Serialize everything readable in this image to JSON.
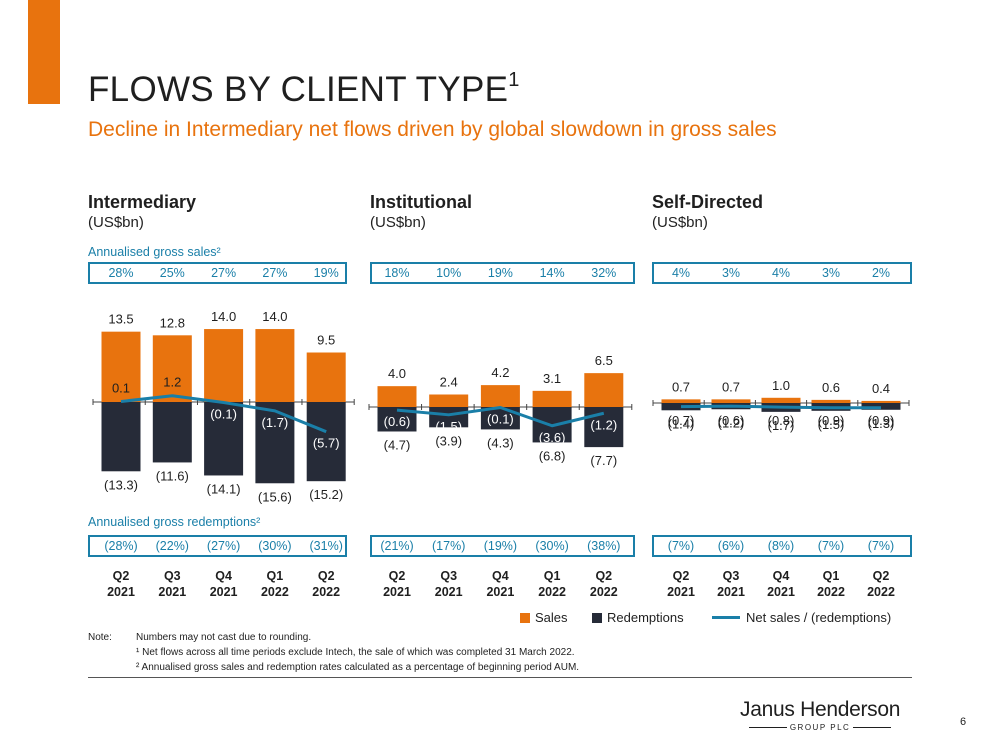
{
  "title": "FLOWS BY CLIENT TYPE",
  "title_sup": "1",
  "subtitle": "Decline in Intermediary net flows driven by global slowdown in gross sales",
  "gross_sales_label": "Annualised gross sales²",
  "gross_redemptions_label": "Annualised gross redemptions²",
  "quarters": [
    {
      "q": "Q2",
      "y": "2021"
    },
    {
      "q": "Q3",
      "y": "2021"
    },
    {
      "q": "Q4",
      "y": "2021"
    },
    {
      "q": "Q1",
      "y": "2022"
    },
    {
      "q": "Q2",
      "y": "2022"
    }
  ],
  "legend": {
    "sales": "Sales",
    "redemptions": "Redemptions",
    "net": "Net sales / (redemptions)"
  },
  "notes": {
    "lead": "Note:",
    "line1": "Numbers may not cast due to rounding.",
    "line2": "¹ Net flows across all time periods exclude Intech, the sale of which was completed 31 March 2022.",
    "line3": "² Annualised gross sales and redemption rates calculated as a percentage of beginning period AUM."
  },
  "logo": {
    "name": "Janus Henderson",
    "sub": "GROUP PLC"
  },
  "page_number": "6",
  "colors": {
    "sales": "#e8730e",
    "redemptions": "#262b38",
    "net": "#1a7fa8",
    "accent": "#e8730e"
  },
  "chart_data": [
    {
      "type": "bar",
      "title": "Intermediary",
      "unit": "(US$bn)",
      "categories": [
        "Q2 2021",
        "Q3 2021",
        "Q4 2021",
        "Q1 2022",
        "Q2 2022"
      ],
      "series": [
        {
          "name": "Sales",
          "values": [
            13.5,
            12.8,
            14.0,
            14.0,
            9.5
          ]
        },
        {
          "name": "Redemptions",
          "values": [
            -13.3,
            -11.6,
            -14.1,
            -15.6,
            -15.2
          ]
        },
        {
          "name": "Net sales / (redemptions)",
          "values": [
            0.1,
            1.2,
            -0.1,
            -1.7,
            -5.7
          ]
        }
      ],
      "labels": {
        "sales": [
          "13.5",
          "12.8",
          "14.0",
          "14.0",
          "9.5"
        ],
        "redemptions": [
          "(13.3)",
          "(11.6)",
          "(14.1)",
          "(15.6)",
          "(15.2)"
        ],
        "net": [
          "0.1",
          "1.2",
          "(0.1)",
          "(1.7)",
          "(5.7)"
        ]
      },
      "gross_sales_rates": [
        "28%",
        "25%",
        "27%",
        "27%",
        "19%"
      ],
      "gross_redemption_rates": [
        "(28%)",
        "(22%)",
        "(27%)",
        "(30%)",
        "(31%)"
      ]
    },
    {
      "type": "bar",
      "title": "Institutional",
      "unit": "(US$bn)",
      "categories": [
        "Q2 2021",
        "Q3 2021",
        "Q4 2021",
        "Q1 2022",
        "Q2 2022"
      ],
      "series": [
        {
          "name": "Sales",
          "values": [
            4.0,
            2.4,
            4.2,
            3.1,
            6.5
          ]
        },
        {
          "name": "Redemptions",
          "values": [
            -4.7,
            -3.9,
            -4.3,
            -6.8,
            -7.7
          ]
        },
        {
          "name": "Net sales / (redemptions)",
          "values": [
            -0.6,
            -1.5,
            -0.1,
            -3.6,
            -1.2
          ]
        }
      ],
      "labels": {
        "sales": [
          "4.0",
          "2.4",
          "4.2",
          "3.1",
          "6.5"
        ],
        "redemptions": [
          "(4.7)",
          "(3.9)",
          "(4.3)",
          "(6.8)",
          "(7.7)"
        ],
        "net": [
          "(0.6)",
          "(1.5)",
          "(0.1)",
          "(3.6)",
          "(1.2)"
        ]
      },
      "gross_sales_rates": [
        "18%",
        "10%",
        "19%",
        "14%",
        "32%"
      ],
      "gross_redemption_rates": [
        "(21%)",
        "(17%)",
        "(19%)",
        "(30%)",
        "(38%)"
      ]
    },
    {
      "type": "bar",
      "title": "Self-Directed",
      "unit": "(US$bn)",
      "categories": [
        "Q2 2021",
        "Q3 2021",
        "Q4 2021",
        "Q1 2022",
        "Q2 2022"
      ],
      "series": [
        {
          "name": "Sales",
          "values": [
            0.7,
            0.7,
            1.0,
            0.6,
            0.4
          ]
        },
        {
          "name": "Redemptions",
          "values": [
            -1.4,
            -1.2,
            -1.7,
            -1.5,
            -1.3
          ]
        },
        {
          "name": "Net sales / (redemptions)",
          "values": [
            -0.7,
            -0.6,
            -0.8,
            -0.9,
            -0.9
          ]
        }
      ],
      "labels": {
        "sales": [
          "0.7",
          "0.7",
          "1.0",
          "0.6",
          "0.4"
        ],
        "redemptions": [
          "(1.4)",
          "(1.2)",
          "(1.7)",
          "(1.5)",
          "(1.3)"
        ],
        "net": [
          "(0.7)",
          "(0.6)",
          "(0.8)",
          "(0.9)",
          "(0.9)"
        ]
      },
      "gross_sales_rates": [
        "4%",
        "3%",
        "4%",
        "3%",
        "2%"
      ],
      "gross_redemption_rates": [
        "(7%)",
        "(6%)",
        "(8%)",
        "(7%)",
        "(7%)"
      ]
    }
  ]
}
